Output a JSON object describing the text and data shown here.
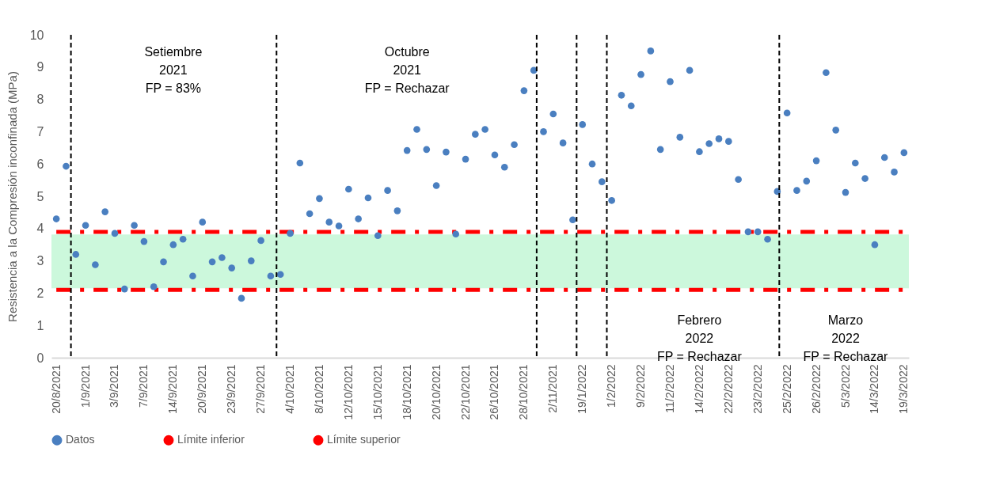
{
  "chart_data": {
    "type": "scatter",
    "ylabel": "Resistencia a la Compresión inconfinada (MPa)",
    "categories": [
      "20/8/2021",
      null,
      null,
      "1/9/2021",
      null,
      null,
      "3/9/2021",
      null,
      null,
      "7/9/2021",
      null,
      null,
      "14/9/2021",
      null,
      null,
      "20/9/2021",
      null,
      null,
      "23/9/2021",
      null,
      null,
      "27/9/2021",
      null,
      null,
      "4/10/2021",
      null,
      null,
      "8/10/2021",
      null,
      null,
      "12/10/2021",
      null,
      null,
      "15/10/2021",
      null,
      null,
      "18/10/2021",
      null,
      null,
      "20/10/2021",
      null,
      null,
      "22/10/2021",
      null,
      null,
      "26/10/2021",
      null,
      null,
      "28/10/2021",
      null,
      null,
      "2/11/2021",
      null,
      null,
      "19/1/2022",
      null,
      null,
      "1/2/2022",
      null,
      null,
      "9/2/2022",
      null,
      null,
      "11/2/2022",
      null,
      null,
      "14/2/2022",
      null,
      null,
      "22/2/2022",
      null,
      null,
      "23/2/2022",
      null,
      null,
      "25/2/2022",
      null,
      null,
      "26/2/2022",
      null,
      null,
      "5/3/2022",
      null,
      null,
      "14/3/2022",
      null,
      null,
      "19/3/2022"
    ],
    "series": [
      {
        "name": "Datos",
        "marker": "circle",
        "color": "#4a7fc0",
        "values": [
          4.3,
          5.93,
          3.2,
          4.1,
          2.88,
          4.52,
          3.85,
          2.13,
          4.1,
          3.6,
          2.2,
          2.97,
          3.5,
          3.67,
          2.53,
          4.2,
          2.97,
          3.1,
          2.78,
          1.84,
          3.0,
          3.63,
          2.53,
          2.58,
          3.85,
          6.03,
          4.46,
          4.93,
          4.2,
          4.08,
          5.22,
          4.3,
          4.95,
          3.78,
          5.18,
          4.55,
          6.42,
          7.07,
          6.45,
          5.33,
          6.37,
          3.83,
          6.15,
          6.92,
          7.07,
          6.28,
          5.9,
          6.6,
          8.27,
          8.9,
          7.0,
          7.55,
          6.65,
          4.27,
          7.22,
          6.0,
          5.45,
          4.87,
          8.13,
          7.8,
          8.77,
          9.5,
          6.45,
          8.55,
          6.83,
          8.9,
          6.38,
          6.63,
          6.78,
          6.7,
          5.52,
          3.9,
          3.9,
          3.67,
          5.15,
          7.58,
          5.18,
          5.47,
          6.1,
          8.83,
          7.05,
          5.12,
          6.03,
          5.55,
          3.5,
          6.2,
          5.75,
          6.35
        ]
      },
      {
        "name": "Límite inferior",
        "type": "line",
        "line_style": "dashed",
        "color": "#ff0000",
        "values": [
          2.1,
          2.1,
          2.1,
          2.1,
          2.1,
          2.1,
          2.1,
          2.1,
          2.1,
          2.1,
          2.1,
          2.1,
          2.1,
          2.1,
          2.1,
          2.1,
          2.1,
          2.1,
          2.1,
          2.1,
          2.1,
          2.1,
          2.1,
          2.1,
          2.1,
          2.1,
          2.1,
          2.1,
          2.1,
          2.1,
          2.1,
          2.1,
          2.1,
          2.1,
          2.1,
          2.1,
          2.1,
          2.1,
          2.1,
          2.1,
          2.1,
          2.1,
          2.1,
          2.1,
          2.1,
          2.1,
          2.1,
          2.1,
          2.1,
          2.1,
          2.1,
          2.1,
          2.1,
          2.1,
          2.1,
          2.1,
          2.1,
          2.1,
          2.1,
          2.1,
          2.1,
          2.1,
          2.1,
          2.1,
          2.1,
          2.1,
          2.1,
          2.1,
          2.1,
          2.1,
          2.1,
          2.1,
          2.1,
          2.1,
          2.1,
          2.1,
          2.1,
          2.1,
          2.1,
          2.1,
          2.1,
          2.1,
          2.1,
          2.1,
          2.1,
          2.1,
          2.1,
          2.1
        ]
      },
      {
        "name": "Límite superior",
        "type": "line",
        "line_style": "dashed",
        "color": "#ff0000",
        "values": [
          3.9,
          3.9,
          3.9,
          3.9,
          3.9,
          3.9,
          3.9,
          3.9,
          3.9,
          3.9,
          3.9,
          3.9,
          3.9,
          3.9,
          3.9,
          3.9,
          3.9,
          3.9,
          3.9,
          3.9,
          3.9,
          3.9,
          3.9,
          3.9,
          3.9,
          3.9,
          3.9,
          3.9,
          3.9,
          3.9,
          3.9,
          3.9,
          3.9,
          3.9,
          3.9,
          3.9,
          3.9,
          3.9,
          3.9,
          3.9,
          3.9,
          3.9,
          3.9,
          3.9,
          3.9,
          3.9,
          3.9,
          3.9,
          3.9,
          3.9,
          3.9,
          3.9,
          3.9,
          3.9,
          3.9,
          3.9,
          3.9,
          3.9,
          3.9,
          3.9,
          3.9,
          3.9,
          3.9,
          3.9,
          3.9,
          3.9,
          3.9,
          3.9,
          3.9,
          3.9,
          3.9,
          3.9,
          3.9,
          3.9,
          3.9,
          3.9,
          3.9,
          3.9,
          3.9,
          3.9,
          3.9,
          3.9,
          3.9,
          3.9,
          3.9,
          3.9,
          3.9,
          3.9
        ]
      }
    ],
    "ylim": [
      0,
      10
    ],
    "yticks": [
      0,
      1,
      2,
      3,
      4,
      5,
      6,
      7,
      8,
      9,
      10
    ],
    "bands": [
      {
        "axis": "y",
        "from": 2.15,
        "to": 3.82,
        "color": "#ccf8dc"
      }
    ],
    "annotations": [
      "Setiembre\n2021\nFP = 83%",
      "Octubre\n2021\nFP = Rechazar",
      "Febrero\n2022\nFP = Rechazar",
      "Marzo\n2022\nFP = Rechazar"
    ],
    "grid": false,
    "legend": "bottom"
  }
}
